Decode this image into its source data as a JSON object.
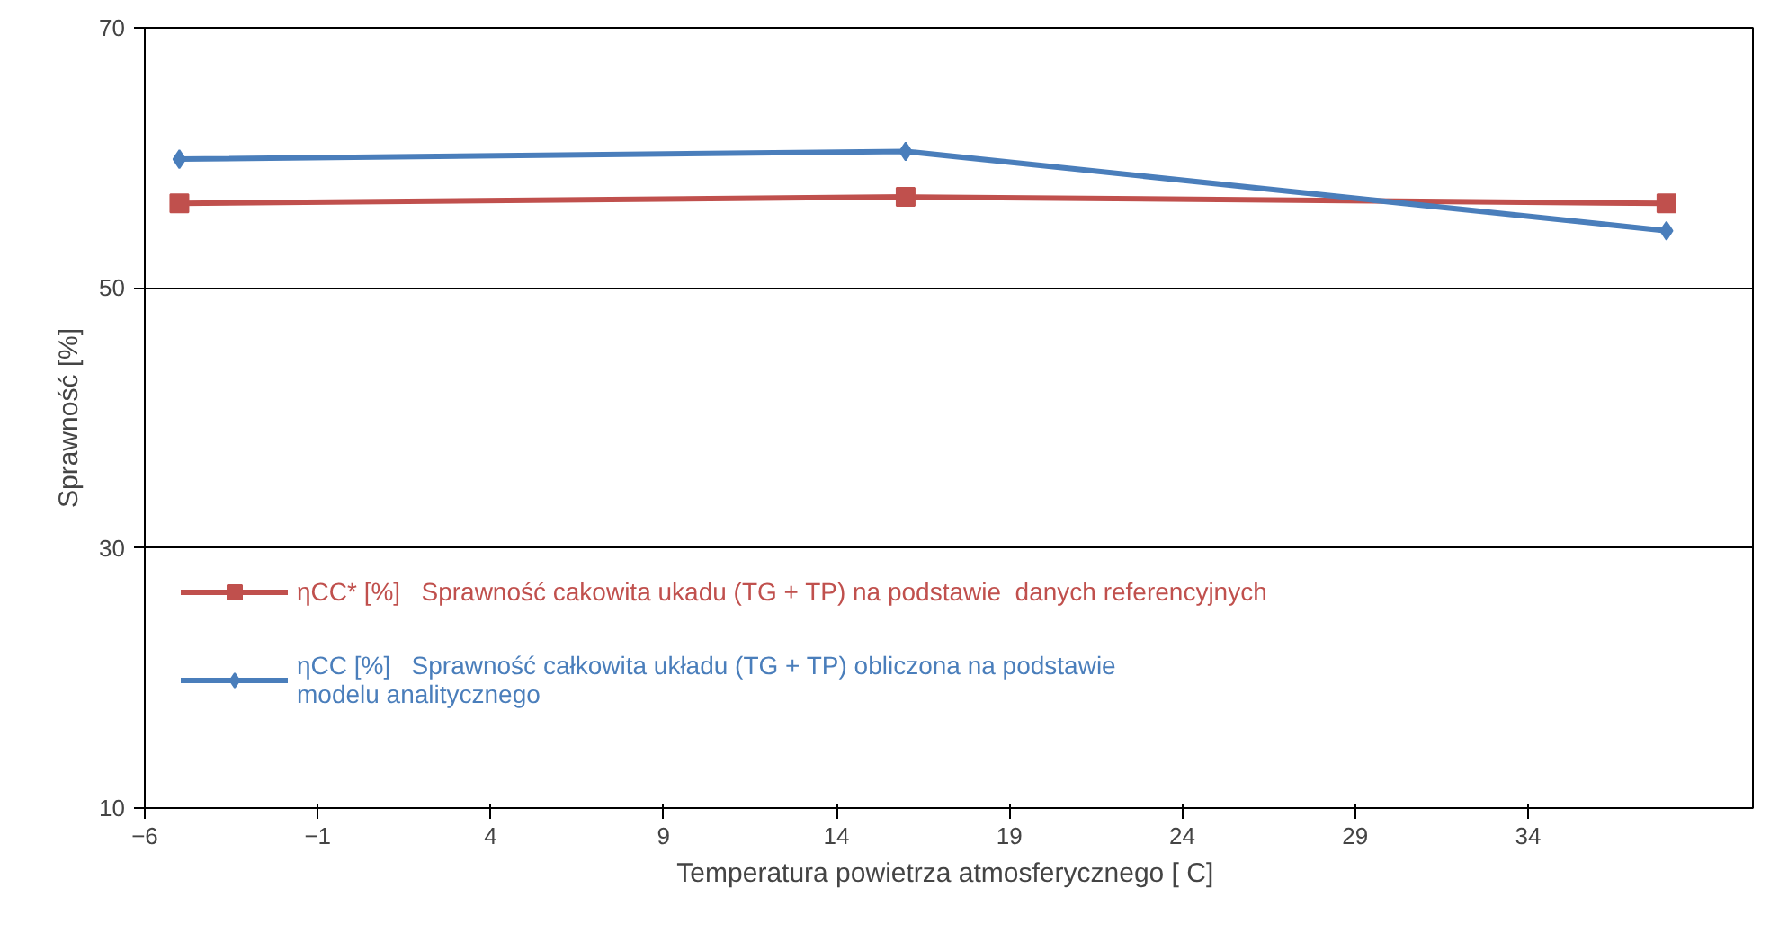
{
  "chart_data": {
    "type": "line",
    "xlabel": "Temperatura powietrza atmosferycznego [  C]",
    "ylabel": "Sprawność [%]",
    "x": [
      -5,
      16,
      38
    ],
    "series": [
      {
        "name": "ηCC* [%]   Sprawność cakowita ukadu (TG + TP) na podstawie  danych referencyjnych",
        "color": "#c0504d",
        "values": [
          56.5,
          57.0,
          56.5
        ],
        "marker": "square"
      },
      {
        "name": "ηCC [%]   Sprawność całkowita układu (TG + TP) obliczona na podstawie\nmodelu analitycznego",
        "color": "#4a7ebb",
        "values": [
          59.9,
          60.5,
          54.4
        ],
        "marker": "diamond"
      }
    ],
    "xlim": [
      -6,
      40.5
    ],
    "ylim": [
      10,
      70
    ],
    "xticks": [
      -6,
      -1,
      4,
      9,
      14,
      19,
      24,
      29,
      34
    ],
    "yticks": [
      10,
      30,
      50,
      70
    ],
    "grid": "y",
    "legend": "bottom left"
  }
}
